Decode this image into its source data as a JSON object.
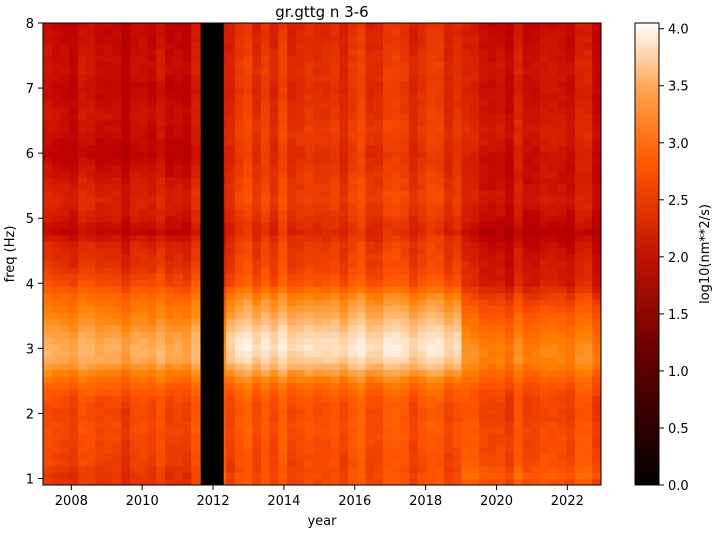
{
  "chart_data": {
    "type": "heatmap",
    "title": "gr.gttg n 3-6",
    "xlabel": "year",
    "ylabel": "freq (Hz)",
    "colorbar_label": "log10(nm**2/s)",
    "colormap": "gist_heat",
    "xlim": [
      2007.2,
      2022.95
    ],
    "ylim": [
      0.9,
      8.0
    ],
    "x_ticks": [
      2008,
      2010,
      2012,
      2014,
      2016,
      2018,
      2020,
      2022
    ],
    "x_tick_labels": [
      "2008",
      "2010",
      "2012",
      "2014",
      "2016",
      "2018",
      "2020",
      "2022"
    ],
    "y_ticks": [
      1,
      2,
      3,
      4,
      5,
      6,
      7,
      8
    ],
    "y_tick_labels": [
      "1",
      "2",
      "3",
      "4",
      "5",
      "6",
      "7",
      "8"
    ],
    "colorbar_range": [
      0.0,
      4.05
    ],
    "colorbar_ticks": [
      0.0,
      0.5,
      1.0,
      1.5,
      2.0,
      2.5,
      3.0,
      3.5,
      4.0
    ],
    "colorbar_tick_labels": [
      "0.0",
      "0.5",
      "1.0",
      "1.5",
      "2.0",
      "2.5",
      "3.0",
      "3.5",
      "4.0"
    ],
    "data_gap": [
      2011.65,
      2012.3
    ],
    "time_periods": [
      {
        "start": 2007.2,
        "end": 2011.65,
        "profile": "early"
      },
      {
        "start": 2012.3,
        "end": 2019.0,
        "profile": "middle"
      },
      {
        "start": 2019.0,
        "end": 2022.95,
        "profile": "late"
      }
    ],
    "freq_profiles": {
      "freq": [
        0.9,
        1.0,
        1.2,
        1.5,
        1.8,
        2.0,
        2.2,
        2.4,
        2.6,
        2.8,
        3.0,
        3.2,
        3.5,
        3.8,
        4.0,
        4.3,
        4.6,
        4.8,
        5.0,
        5.3,
        5.6,
        6.0,
        6.3,
        6.6,
        7.0,
        7.3,
        7.6,
        8.0
      ],
      "early": [
        2.45,
        2.4,
        2.5,
        2.55,
        2.6,
        2.55,
        2.6,
        2.75,
        3.0,
        3.35,
        3.4,
        3.3,
        3.05,
        2.85,
        2.6,
        2.4,
        2.3,
        2.05,
        2.2,
        2.3,
        2.2,
        2.0,
        2.1,
        2.15,
        2.05,
        2.15,
        2.1,
        2.05
      ],
      "middle": [
        2.6,
        2.65,
        2.6,
        2.65,
        2.7,
        2.65,
        2.7,
        2.85,
        3.2,
        3.65,
        3.85,
        3.75,
        3.4,
        3.1,
        2.7,
        2.55,
        2.5,
        2.35,
        2.45,
        2.55,
        2.5,
        2.4,
        2.5,
        2.45,
        2.4,
        2.45,
        2.4,
        2.35
      ],
      "late": [
        2.5,
        2.8,
        2.65,
        2.6,
        2.6,
        2.55,
        2.55,
        2.65,
        2.85,
        3.05,
        3.05,
        2.95,
        2.75,
        2.5,
        2.25,
        2.2,
        2.1,
        1.95,
        2.1,
        2.2,
        2.15,
        2.15,
        2.25,
        2.2,
        2.15,
        2.2,
        2.15,
        2.1
      ]
    }
  }
}
